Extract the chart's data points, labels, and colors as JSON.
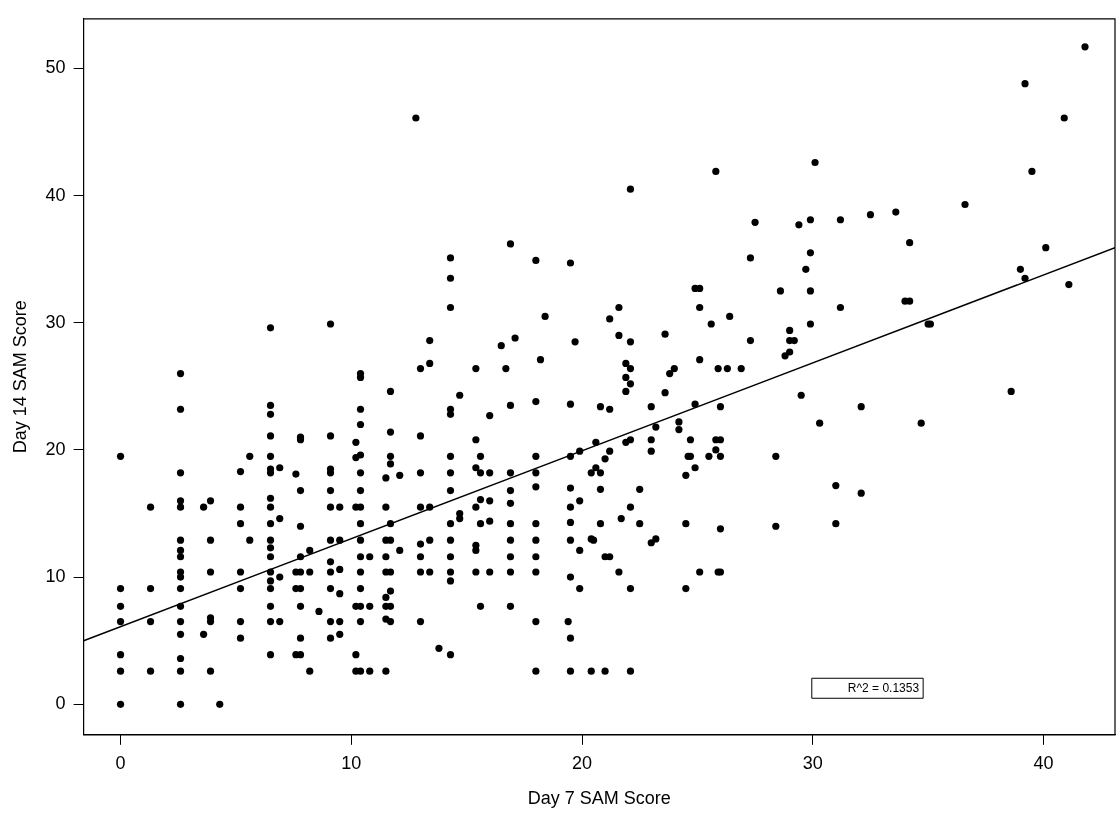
{
  "chart_data": {
    "type": "scatter",
    "xlabel": "Day 7 SAM Score",
    "ylabel": "Day 14 SAM Score",
    "xlim": [
      -1.6,
      43.1
    ],
    "ylim": [
      -2.4,
      53.9
    ],
    "xticks": [
      0,
      10,
      20,
      30,
      40
    ],
    "yticks": [
      0,
      10,
      20,
      30,
      40,
      50
    ],
    "annotations": [
      "R^2 = 0.1353"
    ],
    "series": [
      {
        "color": "#000000",
        "marker": "circle",
        "x": [
          0,
          0,
          0,
          0,
          0,
          0,
          0,
          1.3,
          1.3,
          1.3,
          1.3,
          2.6,
          2.6,
          2.6,
          2.6,
          2.6,
          2.6,
          2.6,
          2.6,
          2.6,
          2.6,
          2.6,
          2.6,
          2.6,
          2.6,
          2.6,
          2.6,
          2.6,
          3.6,
          3.6,
          3.9,
          3.9,
          3.9,
          3.9,
          3.9,
          3.9,
          4.3,
          5.2,
          5.2,
          5.2,
          5.2,
          5.2,
          5.2,
          5.2,
          5.6,
          5.6,
          6.5,
          6.5,
          6.5,
          6.5,
          6.5,
          6.5,
          6.5,
          6.5,
          6.5,
          6.5,
          6.5,
          6.5,
          6.5,
          6.5,
          6.5,
          6.5,
          6.5,
          6.5,
          6.5,
          6.9,
          6.9,
          6.9,
          6.9,
          7.6,
          7.6,
          7.6,
          7.6,
          7.8,
          7.8,
          7.8,
          7.8,
          7.8,
          7.8,
          7.8,
          7.8,
          7.8,
          7.8,
          8.2,
          8.2,
          8.2,
          8.6,
          9.1,
          9.1,
          9.1,
          9.1,
          9.1,
          9.1,
          9.1,
          9.1,
          9.1,
          9.1,
          9.1,
          9.1,
          9.5,
          9.5,
          9.5,
          9.5,
          9.5,
          9.5,
          10.2,
          10.2,
          10.2,
          10.2,
          10.2,
          10.2,
          10.4,
          10.4,
          10.4,
          10.4,
          10.4,
          10.4,
          10.4,
          10.4,
          10.4,
          10.4,
          10.4,
          10.4,
          10.4,
          10.4,
          10.4,
          10.4,
          10.8,
          10.8,
          10.8,
          11.5,
          11.5,
          11.5,
          11.5,
          11.5,
          11.5,
          11.5,
          11.5,
          11.5,
          11.7,
          11.7,
          11.7,
          11.7,
          11.7,
          11.7,
          11.7,
          11.7,
          11.7,
          11.7,
          12.1,
          12.1,
          12.8,
          13,
          13,
          13,
          13,
          13,
          13,
          13,
          13,
          13.4,
          13.4,
          13.4,
          13.4,
          13.4,
          13.8,
          14.3,
          14.3,
          14.3,
          14.3,
          14.3,
          14.3,
          14.3,
          14.3,
          14.3,
          14.3,
          14.3,
          14.3,
          14.3,
          14.3,
          14.7,
          14.7,
          14.7,
          15.4,
          15.4,
          15.4,
          15.4,
          15.4,
          15.4,
          15.4,
          15.6,
          15.6,
          15.6,
          15.6,
          15.6,
          16,
          16,
          16,
          16,
          16,
          16.5,
          16.7,
          16.9,
          16.9,
          16.9,
          16.9,
          16.9,
          16.9,
          16.9,
          16.9,
          16.9,
          16.9,
          17.1,
          18,
          18,
          18,
          18,
          18,
          18,
          18,
          18,
          18,
          18,
          18,
          18.2,
          18.4,
          19.4,
          19.5,
          19.5,
          19.5,
          19.5,
          19.5,
          19.5,
          19.5,
          19.5,
          19.5,
          19.5,
          19.7,
          19.9,
          19.9,
          19.9,
          19.9,
          20.4,
          20.4,
          20.4,
          20.5,
          20.6,
          20.6,
          20.8,
          20.8,
          20.8,
          20.8,
          21,
          21,
          21,
          21.2,
          21.2,
          21.2,
          21.2,
          21.6,
          21.6,
          21.6,
          21.7,
          21.9,
          21.9,
          21.9,
          21.9,
          22.1,
          22.1,
          22.1,
          22.1,
          22.1,
          22.1,
          22.1,
          22.1,
          22.5,
          22.5,
          23,
          23,
          23,
          23,
          23.2,
          23.2,
          23.6,
          23.6,
          23.8,
          24,
          24.2,
          24.2,
          24.5,
          24.5,
          24.5,
          24.6,
          24.7,
          24.7,
          24.9,
          24.9,
          24.9,
          25.1,
          25.1,
          25.1,
          25.1,
          25.5,
          25.6,
          25.8,
          25.8,
          25.8,
          25.9,
          25.9,
          26,
          26,
          26,
          26,
          26,
          26.3,
          26.4,
          26.9,
          27.3,
          27.3,
          27.5,
          28.4,
          28.4,
          28.6,
          28.8,
          29,
          29,
          29,
          29.2,
          29.4,
          29.5,
          29.7,
          29.9,
          29.9,
          29.9,
          29.9,
          30.1,
          30.3,
          31,
          31,
          31.2,
          31.2,
          32.1,
          32.1,
          32.5,
          33.6,
          34,
          34.2,
          34.2,
          34.7,
          35,
          35.1,
          36.6,
          38.6,
          39,
          39.2,
          39.2,
          39.5,
          40.1,
          40.9,
          41.1,
          41.8
        ],
        "values": [
          19.5,
          9.1,
          7.7,
          6.5,
          3.9,
          2.6,
          0,
          15.5,
          9.1,
          6.5,
          2.6,
          26,
          23.2,
          18.2,
          16,
          15.5,
          12.9,
          12.1,
          11.6,
          10.4,
          10,
          9.1,
          7.7,
          6.5,
          5.5,
          3.6,
          2.6,
          0,
          15.5,
          5.5,
          16,
          12.9,
          10.4,
          6.8,
          6.5,
          2.6,
          0,
          18.3,
          15.5,
          14.2,
          10.4,
          9.1,
          6.5,
          5.2,
          19.5,
          12.9,
          29.6,
          23.5,
          22.8,
          21.1,
          19.5,
          18.5,
          18.2,
          16.2,
          15.5,
          14.2,
          12.9,
          12.3,
          11.6,
          10.4,
          9.7,
          9.1,
          7.7,
          6.5,
          3.9,
          18.6,
          14.6,
          10,
          6.5,
          18.1,
          10.4,
          9.1,
          3.9,
          21,
          20.8,
          16.8,
          14,
          11.6,
          10.4,
          9.1,
          7.7,
          5.2,
          3.9,
          12.1,
          10.4,
          2.6,
          7.3,
          29.9,
          21.1,
          18.5,
          18.2,
          16.8,
          15.5,
          12.9,
          11.2,
          10.4,
          9.1,
          6.5,
          5.2,
          15.5,
          12.9,
          10.6,
          8.7,
          6.5,
          5.5,
          20.6,
          19.4,
          15.5,
          7.7,
          3.9,
          2.6,
          26,
          25.7,
          23.2,
          22,
          19.6,
          18.2,
          16.8,
          15.5,
          14.2,
          12.9,
          11.6,
          10.4,
          9.1,
          7.7,
          6.5,
          2.6,
          11.6,
          7.7,
          2.6,
          17.8,
          15.5,
          12.9,
          11.6,
          10.4,
          8.4,
          7.7,
          6.7,
          2.6,
          24.6,
          21.4,
          19.5,
          18.9,
          14.2,
          12.9,
          10.4,
          8.9,
          7.7,
          6.5,
          18,
          12.1,
          46.1,
          26.4,
          21.1,
          18.2,
          15.5,
          12.6,
          11.6,
          10.4,
          6.5,
          28.6,
          26.8,
          15.5,
          12.9,
          10.4,
          4.4,
          35.1,
          33.5,
          31.2,
          23.2,
          22.8,
          19.5,
          18.2,
          16.8,
          14.2,
          12.9,
          11.6,
          10.4,
          9.7,
          3.9,
          24.3,
          15,
          14.6,
          26.4,
          20.8,
          18.6,
          15.5,
          12.5,
          12.1,
          10.4,
          19.5,
          18.2,
          16.1,
          14.2,
          7.7,
          22.7,
          18.2,
          16,
          14.4,
          10.4,
          28.2,
          26.4,
          36.2,
          23.5,
          18.2,
          16.8,
          15.8,
          14.2,
          12.9,
          11.6,
          10.4,
          7.7,
          28.8,
          34.9,
          23.8,
          19.5,
          18.2,
          17.1,
          14.2,
          12.9,
          11.6,
          10.4,
          6.5,
          2.6,
          27.1,
          30.5,
          6.5,
          34.7,
          23.6,
          19.5,
          17,
          15.5,
          14.3,
          12.9,
          10,
          5.2,
          2.6,
          28.5,
          19.9,
          16,
          12.1,
          9.1,
          18.2,
          13,
          2.6,
          12.9,
          20.6,
          18.6,
          23.4,
          18.2,
          16.9,
          14.2,
          19.3,
          11.6,
          2.6,
          30.3,
          23.2,
          19.9,
          11.6,
          31.2,
          29,
          10.4,
          14.6,
          26.8,
          25.7,
          24.6,
          20.6,
          40.5,
          28.5,
          26.4,
          25.2,
          20.8,
          15.5,
          9.1,
          2.6,
          16.9,
          14.2,
          23.4,
          20.8,
          19.9,
          12.7,
          21.8,
          13,
          29.1,
          24.5,
          26,
          26.4,
          22.2,
          21.6,
          18,
          14.2,
          9.1,
          19.5,
          20.8,
          19.5,
          32.7,
          23.6,
          18.6,
          32.7,
          31.2,
          27.1,
          10.4,
          19.5,
          29.9,
          41.9,
          20.8,
          20,
          26.4,
          10.4,
          23.4,
          20.8,
          19.5,
          13.8,
          10.4,
          26.4,
          30.5,
          26.4,
          35.1,
          28.6,
          37.9,
          19.5,
          14,
          32.5,
          27.4,
          29.4,
          28.6,
          27.7,
          28.6,
          37.7,
          24.3,
          34.2,
          38.1,
          35.5,
          32.5,
          29.9,
          42.6,
          22.1,
          17.2,
          14.2,
          38.1,
          31.2,
          23.4,
          16.6,
          38.5,
          38.7,
          31.7,
          36.3,
          31.7,
          22.1,
          29.9,
          29.9,
          39.3,
          24.6,
          34.2,
          48.8,
          33.5,
          41.9,
          35.9,
          46.1,
          33,
          51.7
        ]
      },
      {
        "type": "line",
        "color": "#000000",
        "x": [
          -1.6,
          43.1
        ],
        "values": [
          5.0,
          35.9
        ]
      }
    ]
  }
}
